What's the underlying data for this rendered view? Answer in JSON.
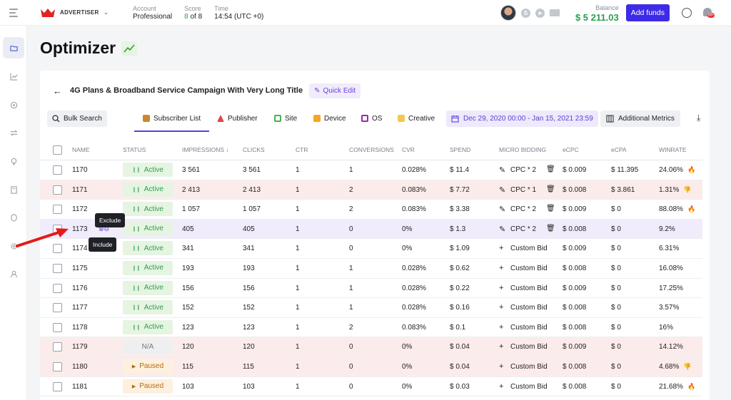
{
  "header": {
    "brand": "ADVERTISER",
    "account_label": "Account",
    "account_value": "Professional",
    "score_label": "Score",
    "score_num": "8",
    "score_rest": "of 8",
    "time_label": "Time",
    "time_value": "14:54 (UTC +0)",
    "balance_label": "Balance",
    "balance_value": "$ 5 211.03",
    "add_funds": "Add funds",
    "notif_count": "99+"
  },
  "page": {
    "title": "Optimizer"
  },
  "campaign": {
    "title": "4G Plans & Broadband Service Campaign With Very Long Title",
    "quick_edit": "Quick Edit"
  },
  "toolbar": {
    "bulk_search": "Bulk Search",
    "tabs": [
      {
        "label": "Subscriber List",
        "color": "#c8892e"
      },
      {
        "label": "Publisher",
        "color": "#e04848"
      },
      {
        "label": "Site",
        "color": "#4caf50"
      },
      {
        "label": "Device",
        "color": "#f5a623"
      },
      {
        "label": "OS",
        "color": "#9c27b0"
      },
      {
        "label": "Creative",
        "color": "#f2c94c"
      }
    ],
    "date_range": "Dec 29, 2020 00:00 - Jan 15, 2021 23:59",
    "additional_metrics": "Additional Metrics"
  },
  "table": {
    "headers": [
      "NAME",
      "STATUS",
      "IMPRESSIONS ↓",
      "CLICKS",
      "CTR",
      "CONVERSIONS",
      "CVR",
      "SPEND",
      "MICRO BIDDING",
      "eCPC",
      "eCPA",
      "WINRATE"
    ],
    "rows": [
      {
        "name": "1170",
        "status": "Active",
        "impressions": "3 561",
        "clicks": "3 561",
        "ctr": "1",
        "conversions": "1",
        "cvr": "0.028%",
        "spend": "$ 11.4",
        "bid": "CPC * 2",
        "ecpc": "$ 0.009",
        "ecpa": "$ 11.395",
        "winrate": "24.06%",
        "emoji": "🔥"
      },
      {
        "name": "1171",
        "status": "Active",
        "impressions": "2 413",
        "clicks": "2 413",
        "ctr": "1",
        "conversions": "2",
        "cvr": "0.083%",
        "spend": "$ 7.72",
        "bid": "CPC * 1",
        "ecpc": "$ 0.008",
        "ecpa": "$ 3.861",
        "winrate": "1.31%",
        "emoji": "👎"
      },
      {
        "name": "1172",
        "status": "Active",
        "impressions": "1 057",
        "clicks": "1 057",
        "ctr": "1",
        "conversions": "2",
        "cvr": "0.083%",
        "spend": "$ 3.38",
        "bid": "CPC * 2",
        "ecpc": "$ 0.009",
        "ecpa": "$ 0",
        "winrate": "88.08%",
        "emoji": "🔥"
      },
      {
        "name": "1173",
        "status": "Active",
        "impressions": "405",
        "clicks": "405",
        "ctr": "1",
        "conversions": "0",
        "cvr": "0%",
        "spend": "$ 1.3",
        "bid": "CPC * 2",
        "ecpc": "$ 0.008",
        "ecpa": "$ 0",
        "winrate": "9.2%",
        "emoji": ""
      },
      {
        "name": "1174",
        "status": "Active",
        "impressions": "341",
        "clicks": "341",
        "ctr": "1",
        "conversions": "0",
        "cvr": "0%",
        "spend": "$ 1.09",
        "bid": "Custom Bid",
        "ecpc": "$ 0.009",
        "ecpa": "$ 0",
        "winrate": "6.31%",
        "emoji": ""
      },
      {
        "name": "1175",
        "status": "Active",
        "impressions": "193",
        "clicks": "193",
        "ctr": "1",
        "conversions": "1",
        "cvr": "0.028%",
        "spend": "$ 0.62",
        "bid": "Custom Bid",
        "ecpc": "$ 0.008",
        "ecpa": "$ 0",
        "winrate": "16.08%",
        "emoji": ""
      },
      {
        "name": "1176",
        "status": "Active",
        "impressions": "156",
        "clicks": "156",
        "ctr": "1",
        "conversions": "1",
        "cvr": "0.028%",
        "spend": "$ 0.22",
        "bid": "Custom Bid",
        "ecpc": "$ 0.009",
        "ecpa": "$ 0",
        "winrate": "17.25%",
        "emoji": ""
      },
      {
        "name": "1177",
        "status": "Active",
        "impressions": "152",
        "clicks": "152",
        "ctr": "1",
        "conversions": "1",
        "cvr": "0.028%",
        "spend": "$ 0.16",
        "bid": "Custom Bid",
        "ecpc": "$ 0.008",
        "ecpa": "$ 0",
        "winrate": "3.57%",
        "emoji": ""
      },
      {
        "name": "1178",
        "status": "Active",
        "impressions": "123",
        "clicks": "123",
        "ctr": "1",
        "conversions": "2",
        "cvr": "0.083%",
        "spend": "$ 0.1",
        "bid": "Custom Bid",
        "ecpc": "$ 0.008",
        "ecpa": "$ 0",
        "winrate": "16%",
        "emoji": ""
      },
      {
        "name": "1179",
        "status": "N/A",
        "impressions": "120",
        "clicks": "120",
        "ctr": "1",
        "conversions": "0",
        "cvr": "0%",
        "spend": "$ 0.04",
        "bid": "Custom Bid",
        "ecpc": "$ 0.009",
        "ecpa": "$ 0",
        "winrate": "14.12%",
        "emoji": ""
      },
      {
        "name": "1180",
        "status": "Paused",
        "impressions": "115",
        "clicks": "115",
        "ctr": "1",
        "conversions": "0",
        "cvr": "0%",
        "spend": "$ 0.04",
        "bid": "Custom Bid",
        "ecpc": "$ 0.008",
        "ecpa": "$ 0",
        "winrate": "4.68%",
        "emoji": "👎"
      },
      {
        "name": "1181",
        "status": "Paused",
        "impressions": "103",
        "clicks": "103",
        "ctr": "1",
        "conversions": "0",
        "cvr": "0%",
        "spend": "$ 0.03",
        "bid": "Custom Bid",
        "ecpc": "$ 0.008",
        "ecpa": "$ 0",
        "winrate": "21.68%",
        "emoji": "🔥"
      }
    ]
  },
  "tooltips": {
    "exclude": "Exclude",
    "include": "Include"
  },
  "colors": {
    "accent": "#3d2be6",
    "active_bg": "#e6f4e2",
    "active_fg": "#2e9e4f",
    "paused_bg": "#fdf0df",
    "paused_fg": "#b86a12",
    "row_red": "#fbeceb",
    "row_highlight": "#f1ecfb"
  }
}
